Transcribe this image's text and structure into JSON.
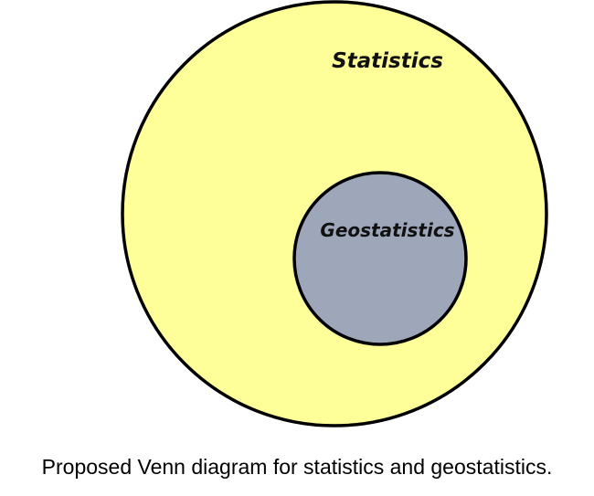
{
  "diagram": {
    "type": "venn",
    "outer_set": {
      "label": "Statistics",
      "fill": "#ffff99",
      "stroke": "#000000"
    },
    "inner_set": {
      "label": "Geostatistics",
      "fill": "#9ea6ba",
      "stroke": "#000000"
    }
  },
  "caption": "Proposed Venn diagram for statistics and geostatistics."
}
